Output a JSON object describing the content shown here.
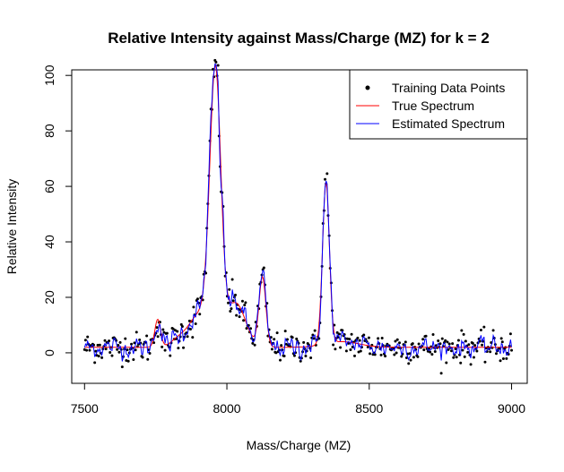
{
  "chart_data": {
    "type": "line",
    "title": "Relative Intensity against Mass/Charge (MZ) for k = 2",
    "xlabel": "Mass/Charge (MZ)",
    "ylabel": "Relative Intensity",
    "xlim": [
      7455,
      9055
    ],
    "ylim": [
      -11,
      102
    ],
    "x_ticks": [
      7500,
      8000,
      8500,
      9000
    ],
    "y_ticks": [
      0,
      20,
      40,
      60,
      80,
      100
    ],
    "grid": false,
    "legend_position": "top-right",
    "legend": [
      "Training Data Points",
      "True Spectrum",
      "Estimated Spectrum"
    ],
    "colors": {
      "points": "#000000",
      "true": "#ff0000",
      "estimated": "#0000ff"
    },
    "baseline": 2,
    "peaks": [
      {
        "center": 7757,
        "height": 10,
        "width": 10
      },
      {
        "center": 7840,
        "height": 4,
        "width": 30
      },
      {
        "center": 7890,
        "height": 8,
        "width": 25
      },
      {
        "center": 7960,
        "height": 92,
        "width": 19
      },
      {
        "center": 7935,
        "height": 12,
        "width": 25
      },
      {
        "center": 8030,
        "height": 16,
        "width": 35
      },
      {
        "center": 8125,
        "height": 25,
        "width": 12
      },
      {
        "center": 8348,
        "height": 58,
        "width": 12
      },
      {
        "center": 8405,
        "height": 2,
        "width": 60
      }
    ],
    "x_range": [
      7500,
      9000
    ],
    "n_points": 420
  }
}
